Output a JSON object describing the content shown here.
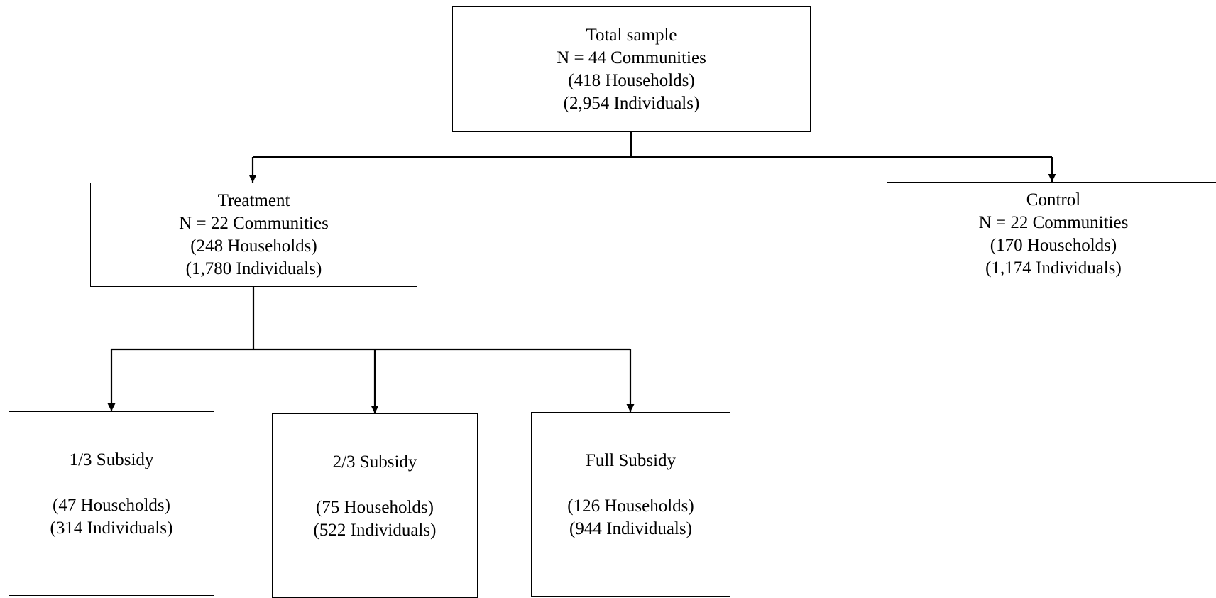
{
  "colors": {
    "line": "#000000",
    "box_border": "#000000",
    "background": "#ffffff"
  },
  "nodes": {
    "total": {
      "title": "Total sample",
      "communities": "N = 44 Communities",
      "households": "(418 Households)",
      "individuals": "(2,954 Individuals)"
    },
    "treatment": {
      "title": "Treatment",
      "communities": "N = 22 Communities",
      "households": "(248 Households)",
      "individuals": "(1,780 Individuals)"
    },
    "control": {
      "title": "Control",
      "communities": "N = 22 Communities",
      "households": "(170 Households)",
      "individuals": "(1,174 Individuals)"
    },
    "subsidy_one_third": {
      "title": "1/3 Subsidy",
      "households": "(47 Households)",
      "individuals": "(314 Individuals)"
    },
    "subsidy_two_thirds": {
      "title": "2/3 Subsidy",
      "households": "(75 Households)",
      "individuals": "(522 Individuals)"
    },
    "subsidy_full": {
      "title": "Full Subsidy",
      "households": "(126 Households)",
      "individuals": "(944 Individuals)"
    }
  }
}
